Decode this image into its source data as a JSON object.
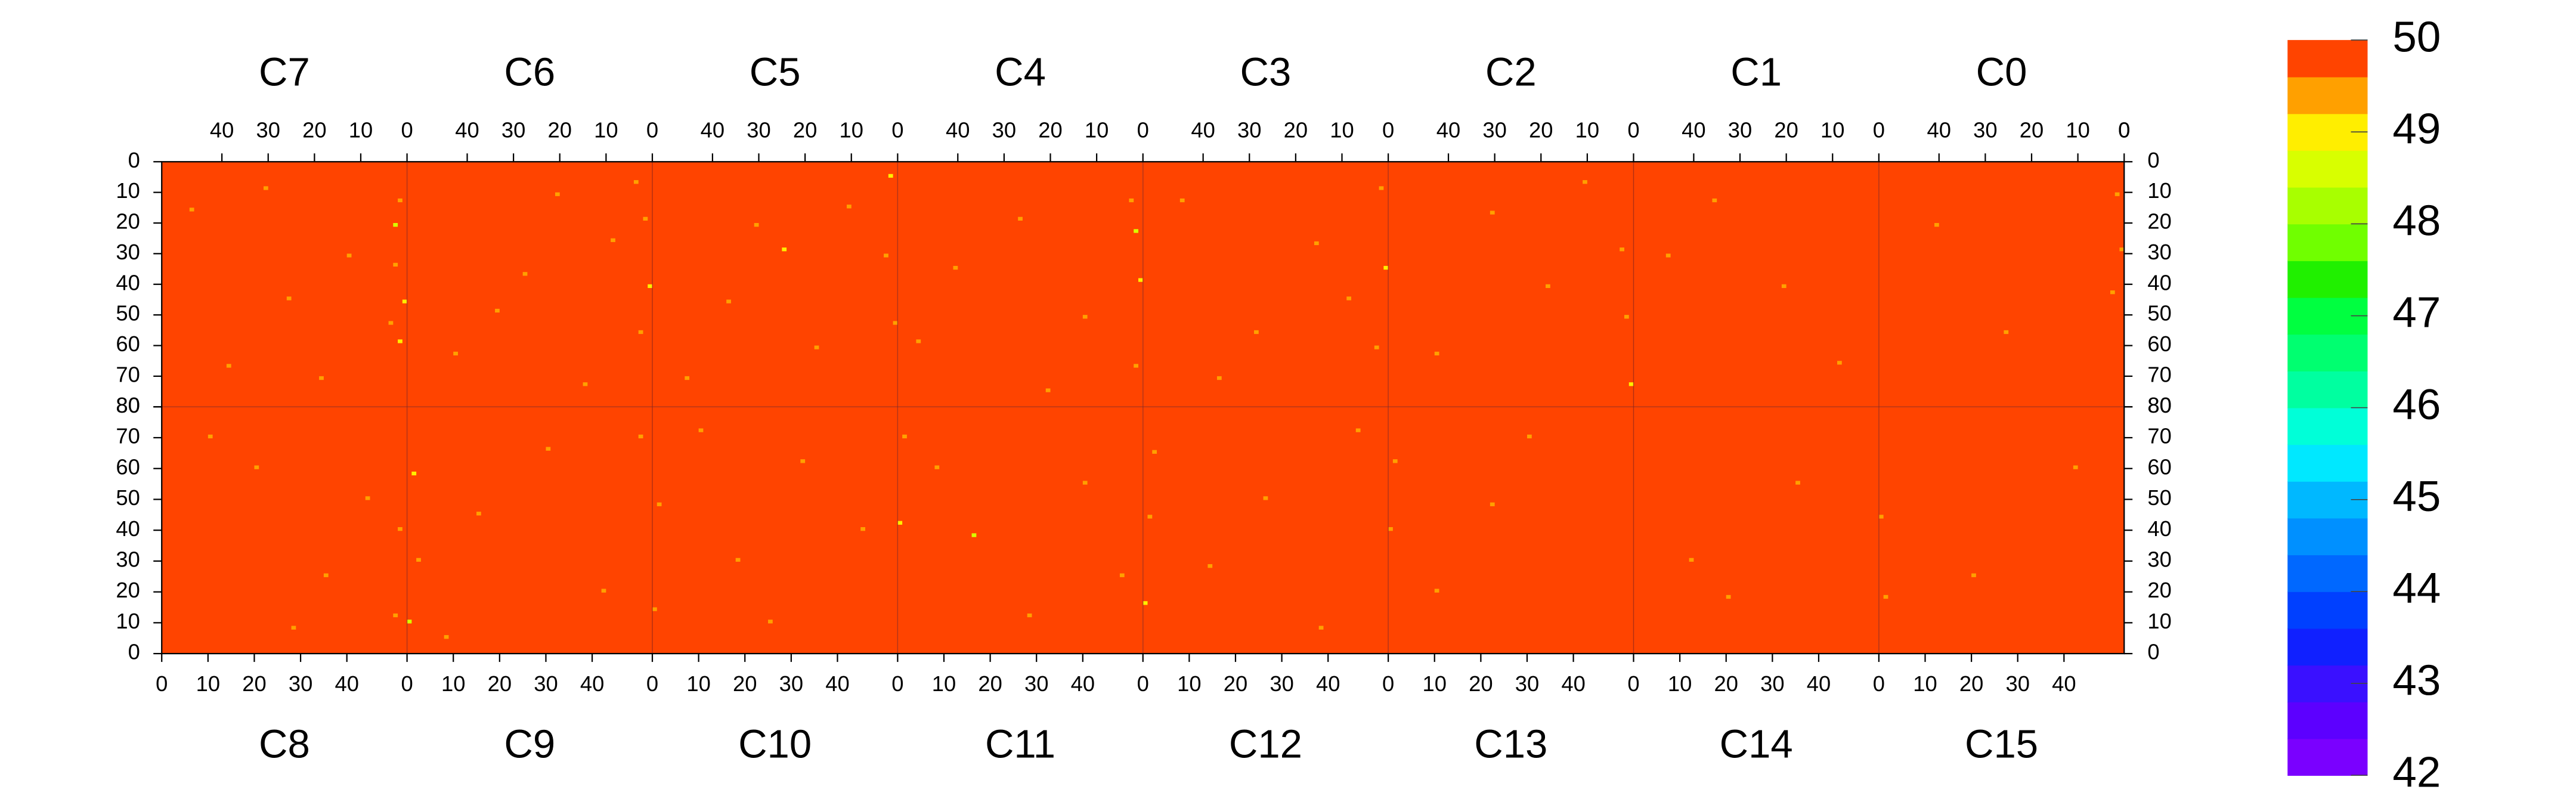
{
  "chart_data": {
    "type": "heatmap",
    "xlim": [
      0,
      53
    ],
    "xticks": [
      0,
      10,
      20,
      30,
      40
    ],
    "ylim": [
      0,
      80
    ],
    "yticks": [
      0,
      10,
      20,
      30,
      40,
      50,
      60,
      70,
      80
    ],
    "zlim": [
      42,
      50
    ],
    "zticks": [
      42,
      43,
      44,
      45,
      46,
      47,
      48,
      49,
      50
    ],
    "zcolors": [
      "#7a00ff",
      "#5c00ff",
      "#3a10ff",
      "#1020ff",
      "#0040ff",
      "#0068ff",
      "#0090ff",
      "#00b8ff",
      "#00e8ff",
      "#00ffd8",
      "#00ffa0",
      "#00ff70",
      "#00ff40",
      "#20f000",
      "#70ff00",
      "#a8ff00",
      "#d8ff00",
      "#ffee00",
      "#ffa000",
      "#ff4400"
    ],
    "panels": [
      {
        "name": "C7",
        "position": "top",
        "value": 50,
        "cells": [
          [
            1,
            12,
            49.2
          ],
          [
            2,
            20,
            48.6
          ],
          [
            0,
            45,
            49
          ],
          [
            3,
            52,
            49.3
          ],
          [
            1,
            58,
            49.1
          ],
          [
            12,
            30,
            49.4
          ],
          [
            25,
            44,
            49.3
          ],
          [
            38,
            66,
            49.4
          ],
          [
            46,
            15,
            49.3
          ],
          [
            2,
            33,
            49.2
          ],
          [
            18,
            70,
            49.4
          ],
          [
            30,
            8,
            49.3
          ]
        ]
      },
      {
        "name": "C6",
        "position": "top",
        "value": 50,
        "cells": [
          [
            1,
            18,
            49.2
          ],
          [
            0,
            40,
            49
          ],
          [
            2,
            55,
            49.3
          ],
          [
            8,
            25,
            49.3
          ],
          [
            20,
            10,
            49.4
          ],
          [
            33,
            48,
            49.3
          ],
          [
            42,
            62,
            49.4
          ],
          [
            14,
            72,
            49.3
          ],
          [
            27,
            36,
            49.4
          ],
          [
            3,
            6,
            49.2
          ]
        ]
      },
      {
        "name": "C5",
        "position": "top",
        "value": 50,
        "cells": [
          [
            1,
            4,
            49.1
          ],
          [
            2,
            30,
            49.3
          ],
          [
            0,
            52,
            49.2
          ],
          [
            10,
            14,
            49.3
          ],
          [
            24,
            28,
            49
          ],
          [
            36,
            45,
            49.4
          ],
          [
            45,
            70,
            49.3
          ],
          [
            17,
            60,
            49.4
          ],
          [
            30,
            20,
            49.3
          ]
        ]
      },
      {
        "name": "C4",
        "position": "top",
        "value": 50,
        "cells": [
          [
            1,
            22,
            48.8
          ],
          [
            0,
            38,
            49
          ],
          [
            2,
            12,
            49.2
          ],
          [
            1,
            66,
            49.2
          ],
          [
            12,
            50,
            49.3
          ],
          [
            26,
            18,
            49.4
          ],
          [
            40,
            34,
            49.3
          ],
          [
            48,
            58,
            49.4
          ],
          [
            20,
            74,
            49.3
          ]
        ]
      },
      {
        "name": "C3",
        "position": "top",
        "value": 50,
        "cells": [
          [
            1,
            8,
            49.2
          ],
          [
            0,
            34,
            48.9
          ],
          [
            2,
            60,
            49.3
          ],
          [
            15,
            26,
            49.3
          ],
          [
            28,
            55,
            49.4
          ],
          [
            44,
            12,
            49.3
          ],
          [
            36,
            70,
            49.4
          ],
          [
            8,
            44,
            49.3
          ]
        ]
      },
      {
        "name": "C2",
        "position": "top",
        "value": 50,
        "cells": [
          [
            1,
            50,
            49.2
          ],
          [
            0,
            72,
            49
          ],
          [
            2,
            28,
            49.3
          ],
          [
            18,
            40,
            49.4
          ],
          [
            30,
            16,
            49.4
          ],
          [
            42,
            62,
            49.3
          ],
          [
            10,
            6,
            49.4
          ]
        ]
      },
      {
        "name": "C1",
        "position": "top",
        "value": 50,
        "cells": [
          [
            20,
            40,
            49.5
          ],
          [
            35,
            12,
            49.5
          ],
          [
            8,
            65,
            49.5
          ],
          [
            45,
            30,
            49.5
          ]
        ]
      },
      {
        "name": "C0",
        "position": "top",
        "value": 50,
        "cells": [
          [
            1,
            10,
            49.2
          ],
          [
            0,
            28,
            49.3
          ],
          [
            2,
            42,
            49.3
          ],
          [
            25,
            55,
            49.5
          ],
          [
            40,
            20,
            49.5
          ]
        ]
      },
      {
        "name": "C8",
        "position": "bottom",
        "value": 50,
        "cells": [
          [
            50,
            12,
            49.2
          ],
          [
            51,
            40,
            49.3
          ],
          [
            20,
            60,
            49.4
          ],
          [
            35,
            25,
            49.3
          ],
          [
            10,
            70,
            49.4
          ],
          [
            44,
            50,
            49.3
          ],
          [
            28,
            8,
            49.4
          ]
        ]
      },
      {
        "name": "C9",
        "position": "bottom",
        "value": 50,
        "cells": [
          [
            0,
            10,
            48.7
          ],
          [
            1,
            58,
            49.1
          ],
          [
            2,
            30,
            49.3
          ],
          [
            15,
            45,
            49.3
          ],
          [
            30,
            66,
            49.4
          ],
          [
            42,
            20,
            49.3
          ],
          [
            50,
            70,
            49.2
          ],
          [
            8,
            5,
            49.4
          ]
        ]
      },
      {
        "name": "C10",
        "position": "bottom",
        "value": 50,
        "cells": [
          [
            0,
            14,
            49.2
          ],
          [
            1,
            48,
            49.3
          ],
          [
            18,
            30,
            49.4
          ],
          [
            32,
            62,
            49.3
          ],
          [
            45,
            40,
            49.4
          ],
          [
            25,
            10,
            49.3
          ],
          [
            10,
            72,
            49.4
          ]
        ]
      },
      {
        "name": "C11",
        "position": "bottom",
        "value": 50,
        "cells": [
          [
            0,
            42,
            49.1
          ],
          [
            1,
            70,
            49.2
          ],
          [
            16,
            38,
            48.8
          ],
          [
            28,
            12,
            49.3
          ],
          [
            40,
            55,
            49.4
          ],
          [
            48,
            25,
            49.3
          ],
          [
            8,
            60,
            49.4
          ]
        ]
      },
      {
        "name": "C12",
        "position": "bottom",
        "value": 50,
        "cells": [
          [
            0,
            16,
            49.1
          ],
          [
            1,
            44,
            49.3
          ],
          [
            2,
            65,
            49.2
          ],
          [
            14,
            28,
            49.4
          ],
          [
            26,
            50,
            49.3
          ],
          [
            38,
            8,
            49.4
          ],
          [
            46,
            72,
            49.3
          ]
        ]
      },
      {
        "name": "C13",
        "position": "bottom",
        "value": 50,
        "cells": [
          [
            0,
            40,
            49.2
          ],
          [
            1,
            62,
            49.3
          ],
          [
            10,
            20,
            49.4
          ],
          [
            22,
            48,
            49.4
          ],
          [
            30,
            70,
            49.5
          ]
        ]
      },
      {
        "name": "C14",
        "position": "bottom",
        "value": 50,
        "cells": [
          [
            20,
            18,
            49.5
          ],
          [
            35,
            55,
            49.5
          ],
          [
            12,
            30,
            49.5
          ]
        ]
      },
      {
        "name": "C15",
        "position": "bottom",
        "value": 50,
        "cells": [
          [
            0,
            44,
            49.2
          ],
          [
            1,
            18,
            49.3
          ],
          [
            20,
            25,
            49.5
          ],
          [
            42,
            60,
            49.5
          ]
        ]
      }
    ]
  }
}
